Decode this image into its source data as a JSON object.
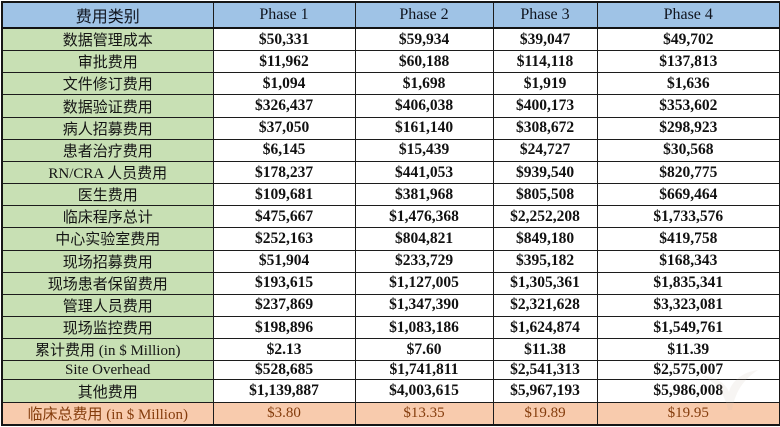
{
  "colors": {
    "header_bg": "#9fc3e6",
    "label_bg": "#c8e0b4",
    "total_bg": "#f8cbad",
    "total_text": "#843c0c",
    "border": "#1c1c1c"
  },
  "table": {
    "header": {
      "category_label": "费用类别",
      "phases": [
        "Phase 1",
        "Phase 2",
        "Phase 3",
        "Phase 4"
      ]
    },
    "rows": [
      {
        "label": "数据管理成本",
        "values": [
          "$50,331",
          "$59,934",
          "$39,047",
          "$49,702"
        ]
      },
      {
        "label": "审批费用",
        "values": [
          "$11,962",
          "$60,188",
          "$114,118",
          "$137,813"
        ]
      },
      {
        "label": "文件修订费用",
        "values": [
          "$1,094",
          "$1,698",
          "$1,919",
          "$1,636"
        ]
      },
      {
        "label": "数据验证费用",
        "values": [
          "$326,437",
          "$406,038",
          "$400,173",
          "$353,602"
        ]
      },
      {
        "label": "病人招募费用",
        "values": [
          "$37,050",
          "$161,140",
          "$308,672",
          "$298,923"
        ]
      },
      {
        "label": "患者治疗费用",
        "values": [
          "$6,145",
          "$15,439",
          "$24,727",
          "$30,568"
        ]
      },
      {
        "label": "RN/CRA 人员费用",
        "values": [
          "$178,237",
          "$441,053",
          "$939,540",
          "$820,775"
        ]
      },
      {
        "label": "医生费用",
        "values": [
          "$109,681",
          "$381,968",
          "$805,508",
          "$669,464"
        ]
      },
      {
        "label": "临床程序总计",
        "values": [
          "$475,667",
          "$1,476,368",
          "$2,252,208",
          "$1,733,576"
        ]
      },
      {
        "label": "中心实验室费用",
        "values": [
          "$252,163",
          "$804,821",
          "$849,180",
          "$419,758"
        ]
      },
      {
        "label": "现场招募费用",
        "values": [
          "$51,904",
          "$233,729",
          "$395,182",
          "$168,343"
        ]
      },
      {
        "label": "现场患者保留费用",
        "values": [
          "$193,615",
          "$1,127,005",
          "$1,305,361",
          "$1,835,341"
        ]
      },
      {
        "label": "管理人员费用",
        "values": [
          "$237,869",
          "$1,347,390",
          "$2,321,628",
          "$3,323,081"
        ]
      },
      {
        "label": "现场监控费用",
        "values": [
          "$198,896",
          "$1,083,186",
          "$1,624,874",
          "$1,549,761"
        ]
      },
      {
        "label": "累计费用 (in $ Million)",
        "values": [
          "$2.13",
          "$7.60",
          "$11.38",
          "$11.39"
        ]
      },
      {
        "label": "Site Overhead",
        "values": [
          "$528,685",
          "$1,741,811",
          "$2,541,313",
          "$2,575,007"
        ]
      },
      {
        "label": "其他费用",
        "values": [
          "$1,139,887",
          "$4,003,615",
          "$5,967,193",
          "$5,986,008"
        ]
      }
    ],
    "total_row": {
      "label": "临床总费用 (in $ Million)",
      "values": [
        "$3.80",
        "$13.35",
        "$19.89",
        "$19.95"
      ]
    }
  }
}
